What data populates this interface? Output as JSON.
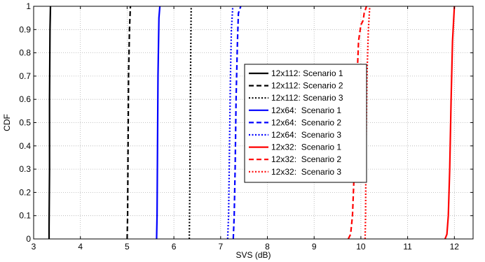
{
  "chart_data": {
    "type": "line",
    "title": "",
    "xlabel": "SVS (dB)",
    "ylabel": "CDF",
    "xlim": [
      3,
      12.4
    ],
    "ylim": [
      0,
      1
    ],
    "xticks": [
      "3",
      "4",
      "5",
      "6",
      "7",
      "8",
      "9",
      "10",
      "11",
      "12"
    ],
    "yticks": [
      "0",
      "0.1",
      "0.2",
      "0.3",
      "0.4",
      "0.5",
      "0.6",
      "0.7",
      "0.8",
      "0.9",
      "1"
    ],
    "grid": true,
    "legend_position": "center-right",
    "series": [
      {
        "name": "12x112: Scenario 1",
        "color": "#000000",
        "dash": "solid",
        "points": [
          [
            3.33,
            0
          ],
          [
            3.33,
            0.05
          ],
          [
            3.34,
            0.3
          ],
          [
            3.34,
            0.6
          ],
          [
            3.35,
            0.9
          ],
          [
            3.36,
            1
          ]
        ]
      },
      {
        "name": "12x112: Scenario 2",
        "color": "#000000",
        "dash": "dashed",
        "points": [
          [
            5.0,
            0
          ],
          [
            5.01,
            0.1
          ],
          [
            5.02,
            0.4
          ],
          [
            5.03,
            0.7
          ],
          [
            5.05,
            0.9
          ],
          [
            5.07,
            1
          ]
        ]
      },
      {
        "name": "12x112: Scenario 3",
        "color": "#000000",
        "dash": "dotted",
        "points": [
          [
            6.33,
            0
          ],
          [
            6.34,
            0.2
          ],
          [
            6.35,
            0.5
          ],
          [
            6.36,
            0.8
          ],
          [
            6.37,
            1
          ]
        ]
      },
      {
        "name": "12x64:  Scenario 1",
        "color": "#0000ff",
        "dash": "solid",
        "points": [
          [
            5.63,
            0
          ],
          [
            5.64,
            0.1
          ],
          [
            5.65,
            0.4
          ],
          [
            5.66,
            0.7
          ],
          [
            5.68,
            0.95
          ],
          [
            5.7,
            1
          ]
        ]
      },
      {
        "name": "12x64:  Scenario 2",
        "color": "#0000ff",
        "dash": "dashed",
        "points": [
          [
            7.27,
            0
          ],
          [
            7.29,
            0.1
          ],
          [
            7.31,
            0.3
          ],
          [
            7.33,
            0.6
          ],
          [
            7.36,
            0.85
          ],
          [
            7.38,
            0.97
          ],
          [
            7.43,
            1
          ]
        ]
      },
      {
        "name": "12x64:  Scenario 3",
        "color": "#0000ff",
        "dash": "dotted",
        "points": [
          [
            7.15,
            0
          ],
          [
            7.17,
            0.1
          ],
          [
            7.19,
            0.4
          ],
          [
            7.21,
            0.7
          ],
          [
            7.23,
            0.9
          ],
          [
            7.26,
            1
          ]
        ]
      },
      {
        "name": "12x32:  Scenario 1",
        "color": "#ff0000",
        "dash": "solid",
        "points": [
          [
            11.8,
            0
          ],
          [
            11.84,
            0.02
          ],
          [
            11.87,
            0.1
          ],
          [
            11.9,
            0.3
          ],
          [
            11.93,
            0.6
          ],
          [
            11.96,
            0.85
          ],
          [
            12.0,
            1
          ]
        ]
      },
      {
        "name": "12x32:  Scenario 2",
        "color": "#ff0000",
        "dash": "dashed",
        "points": [
          [
            9.73,
            0
          ],
          [
            9.78,
            0.02
          ],
          [
            9.82,
            0.1
          ],
          [
            9.86,
            0.3
          ],
          [
            9.9,
            0.6
          ],
          [
            9.95,
            0.85
          ],
          [
            10.0,
            0.92
          ],
          [
            10.05,
            0.94
          ],
          [
            10.07,
            0.97
          ],
          [
            10.12,
            1
          ]
        ]
      },
      {
        "name": "12x32:  Scenario 3",
        "color": "#ff0000",
        "dash": "dotted",
        "points": [
          [
            10.09,
            0
          ],
          [
            10.1,
            0.1
          ],
          [
            10.11,
            0.4
          ],
          [
            10.13,
            0.7
          ],
          [
            10.16,
            0.9
          ],
          [
            10.19,
            1
          ]
        ]
      }
    ]
  }
}
